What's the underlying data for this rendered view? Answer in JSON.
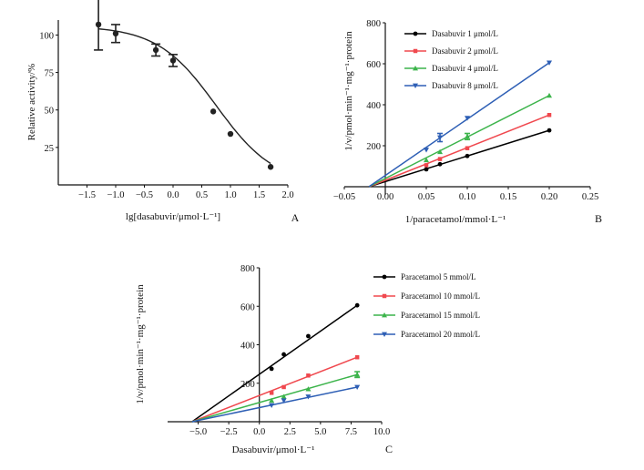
{
  "chart_data": [
    {
      "id": "A",
      "panel_label": "A",
      "type": "scatter",
      "xlabel": "lg[dasabuvir/μmol·L⁻¹]",
      "ylabel": "Relative activity/%",
      "xlim": [
        -2.0,
        2.0
      ],
      "ylim": [
        0,
        110
      ],
      "x_ticks": [
        -1.5,
        -1.0,
        -0.5,
        0.0,
        0.5,
        1.0,
        1.5,
        2.0
      ],
      "x_tick_labels": [
        "−1.5",
        "−1.0",
        "−0.5",
        "0.0",
        "0.5",
        "1.0",
        "1.5",
        "2.0"
      ],
      "y_ticks": [
        25,
        50,
        75,
        100
      ],
      "y_tick_labels": [
        "25",
        "50",
        "75",
        "100"
      ],
      "series": [
        {
          "name": "Relative activity",
          "color": "#222222",
          "x": [
            -1.3,
            -1.0,
            -0.3,
            0.0,
            0.7,
            1.0,
            1.7
          ],
          "y": [
            107,
            101,
            90,
            83,
            49,
            34,
            12
          ],
          "err": [
            17,
            6,
            4,
            4,
            0,
            0,
            0
          ]
        }
      ],
      "fit_curve": {
        "type": "sigmoid",
        "top": 106,
        "bottom": 0,
        "log_ic50": 0.75,
        "hill": -0.85,
        "x_range": [
          -1.3,
          1.7
        ]
      }
    },
    {
      "id": "B",
      "panel_label": "B",
      "type": "scatter",
      "xlabel": "1/paracetamol/mmol·L⁻¹",
      "ylabel": "1/v/pmol·min⁻¹·mg⁻¹·protein",
      "xlim": [
        -0.05,
        0.25
      ],
      "ylim": [
        -40,
        800
      ],
      "x_ticks": [
        -0.05,
        0.0,
        0.05,
        0.1,
        0.15,
        0.2,
        0.25
      ],
      "x_tick_labels": [
        "−0.05",
        "0.00",
        "0.05",
        "0.10",
        "0.15",
        "0.20",
        "0.25"
      ],
      "y_ticks": [
        200,
        400,
        600,
        800
      ],
      "y_tick_labels": [
        "200",
        "400",
        "600",
        "800"
      ],
      "legend": "top-left",
      "series": [
        {
          "name": "Dasabuvir 1 μmol/L",
          "color": "#000000",
          "marker": "circle",
          "x": [
            0.05,
            0.0667,
            0.1,
            0.2
          ],
          "y": [
            85,
            110,
            150,
            275
          ],
          "err": [
            0,
            0,
            0,
            0
          ],
          "line_x": [
            -0.02,
            0.2
          ],
          "line_y": [
            0,
            275
          ]
        },
        {
          "name": "Dasabuvir 2 μmol/L",
          "color": "#f0484e",
          "marker": "square",
          "x": [
            0.05,
            0.0667,
            0.1,
            0.2
          ],
          "y": [
            105,
            135,
            188,
            350
          ],
          "err": [
            0,
            0,
            0,
            0
          ],
          "line_x": [
            -0.02,
            0.2
          ],
          "line_y": [
            0,
            350
          ]
        },
        {
          "name": "Dasabuvir 4 μmol/L",
          "color": "#3cb44b",
          "marker": "triangle-up",
          "x": [
            0.05,
            0.0667,
            0.1,
            0.2
          ],
          "y": [
            130,
            170,
            245,
            445
          ],
          "err": [
            0,
            0,
            15,
            0
          ],
          "line_x": [
            -0.02,
            0.2
          ],
          "line_y": [
            0,
            445
          ]
        },
        {
          "name": "Dasabuvir 8 μmol/L",
          "color": "#2e5fb5",
          "marker": "triangle-down",
          "x": [
            0.05,
            0.0667,
            0.1,
            0.2
          ],
          "y": [
            180,
            240,
            335,
            605
          ],
          "err": [
            0,
            20,
            0,
            0
          ],
          "line_x": [
            -0.02,
            0.2
          ],
          "line_y": [
            0,
            605
          ]
        }
      ]
    },
    {
      "id": "C",
      "panel_label": "C",
      "type": "scatter",
      "xlabel": "Dasabuvir/μmol·L⁻¹",
      "ylabel": "1/v/pmol·min⁻¹·mg⁻¹·protein",
      "xlim": [
        -7.5,
        10.0
      ],
      "ylim": [
        0,
        800
      ],
      "x_ticks": [
        -5.0,
        -2.5,
        0.0,
        2.5,
        5.0,
        7.5,
        10.0
      ],
      "x_tick_labels": [
        "−5.0",
        "−2.5",
        "0.0",
        "2.5",
        "5.0",
        "7.5",
        "10.0"
      ],
      "y_ticks": [
        200,
        400,
        600,
        800
      ],
      "y_tick_labels": [
        "200",
        "400",
        "600",
        "800"
      ],
      "legend": "right",
      "series": [
        {
          "name": "Paracetamol 5 mmol/L",
          "color": "#000000",
          "marker": "circle",
          "x": [
            1,
            2,
            4,
            8
          ],
          "y": [
            275,
            350,
            445,
            605
          ],
          "err": [
            0,
            0,
            0,
            0
          ],
          "line_x": [
            -5.5,
            8
          ],
          "line_y": [
            0,
            605
          ]
        },
        {
          "name": "Paracetamol 10 mmol/L",
          "color": "#f0484e",
          "marker": "square",
          "x": [
            1,
            2,
            4,
            8
          ],
          "y": [
            150,
            180,
            240,
            335
          ],
          "err": [
            0,
            0,
            0,
            0
          ],
          "line_x": [
            -5.5,
            8
          ],
          "line_y": [
            0,
            335
          ]
        },
        {
          "name": "Paracetamol 15 mmol/L",
          "color": "#3cb44b",
          "marker": "triangle-up",
          "x": [
            1,
            2,
            4,
            8
          ],
          "y": [
            110,
            130,
            170,
            245
          ],
          "err": [
            0,
            0,
            0,
            15
          ],
          "line_x": [
            -5.5,
            8
          ],
          "line_y": [
            0,
            245
          ]
        },
        {
          "name": "Paracetamol 20 mmol/L",
          "color": "#2e5fb5",
          "marker": "triangle-down",
          "x": [
            1,
            2,
            4,
            8
          ],
          "y": [
            85,
            110,
            130,
            180
          ],
          "err": [
            0,
            0,
            0,
            0
          ],
          "line_x": [
            -5.5,
            8
          ],
          "line_y": [
            0,
            180
          ]
        }
      ]
    }
  ]
}
